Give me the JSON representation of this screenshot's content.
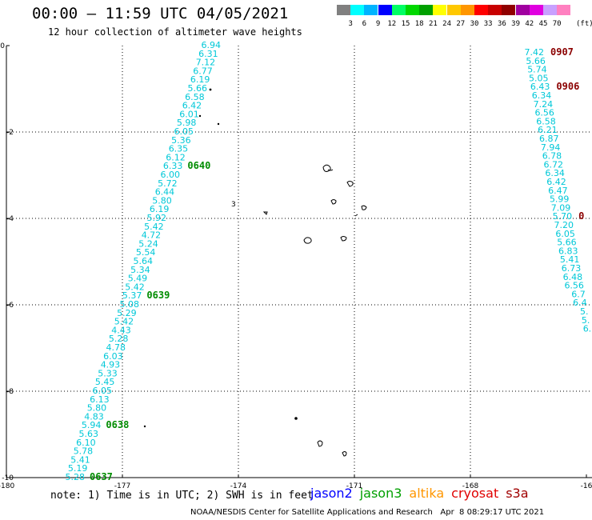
{
  "header": {
    "title": "00:00 — 11:59 UTC 04/05/2021",
    "subtitle": "12 hour collection of altimeter wave heights"
  },
  "colorbar": {
    "unit": "(ft)",
    "swatches": [
      "#808080",
      "#00ffff",
      "#00b4ff",
      "#0000ff",
      "#00ff64",
      "#00d800",
      "#00a000",
      "#ffff00",
      "#ffc800",
      "#ff9600",
      "#ff0000",
      "#c80000",
      "#900000",
      "#a000a0",
      "#e000e0",
      "#c8a0ff",
      "#ff80c0"
    ],
    "labels": [
      "3",
      "6",
      "9",
      "12",
      "15",
      "18",
      "21",
      "24",
      "27",
      "30",
      "33",
      "36",
      "39",
      "42",
      "45",
      "70"
    ]
  },
  "axes": {
    "x_ticks": [
      "-180",
      "-177",
      "-174",
      "-171",
      "-168",
      "-16"
    ],
    "y_ticks": [
      "0",
      "-2",
      "-4",
      "-6",
      "-8",
      "-10"
    ]
  },
  "track_left": {
    "values": [
      "6.94",
      "6.31",
      "7.12",
      "6.77",
      "6.19",
      "5.66",
      "6.58",
      "6.42",
      "6.01",
      "5.98",
      "6.05",
      "5.36",
      "6.35",
      "6.12",
      "6.33",
      "6.00",
      "5.72",
      "6.44",
      "5.80",
      "6.19",
      "5.92",
      "5.42",
      "4.72",
      "5.24",
      "5.54",
      "5.64",
      "5.34",
      "5.49",
      "5.42",
      "5.37",
      "5.08",
      "5.29",
      "5.42",
      "4.43",
      "5.28",
      "4.78",
      "6.03",
      "4.93",
      "5.33",
      "5.45",
      "6.05",
      "6.13",
      "5.80",
      "4.83",
      "5.94",
      "5.63",
      "6.10",
      "5.78",
      "5.41",
      "5.19",
      "5.28"
    ],
    "times": [
      {
        "label": "0640",
        "row": 14
      },
      {
        "label": "0639",
        "row": 29
      },
      {
        "label": "0638",
        "row": 44
      },
      {
        "label": "0637",
        "row": 50
      }
    ]
  },
  "track_right": {
    "values": [
      "7.42",
      "5.66",
      "5.74",
      "5.05",
      "6.43",
      "6.34",
      "7.24",
      "6.56",
      "6.58",
      "6.21",
      "6.87",
      "7.94",
      "6.78",
      "6.72",
      "6.34",
      "6.42",
      "6.47",
      "5.99",
      "7.09",
      "5.70",
      "7.20",
      "6.05",
      "5.66",
      "6.83",
      "5.41",
      "6.73",
      "6.48",
      "6.56",
      "6.7",
      "6.4",
      "5.",
      "5.",
      "6."
    ],
    "times": [
      {
        "label": "0907",
        "row": 0
      },
      {
        "label": "0906",
        "row": 4
      },
      {
        "label": "0",
        "row": 19
      }
    ]
  },
  "islands": [
    "3"
  ],
  "footer": {
    "note": "note: 1) Time is in UTC; 2) SWH is in feet",
    "credit": "NOAA/NESDIS Center for Satellite Applications and Research   Apr  8 08:29:17 UTC 2021",
    "legend": [
      {
        "name": "jason2",
        "color": "#0000ff"
      },
      {
        "name": "jason3",
        "color": "#00a000"
      },
      {
        "name": "altika",
        "color": "#ff9600"
      },
      {
        "name": "cryosat",
        "color": "#e00000"
      },
      {
        "name": "s3a",
        "color": "#a00000"
      }
    ]
  },
  "colors": {
    "value_text": "#00c8d8",
    "jason3_time": "#008c00",
    "s3a_time": "#8b0000"
  }
}
